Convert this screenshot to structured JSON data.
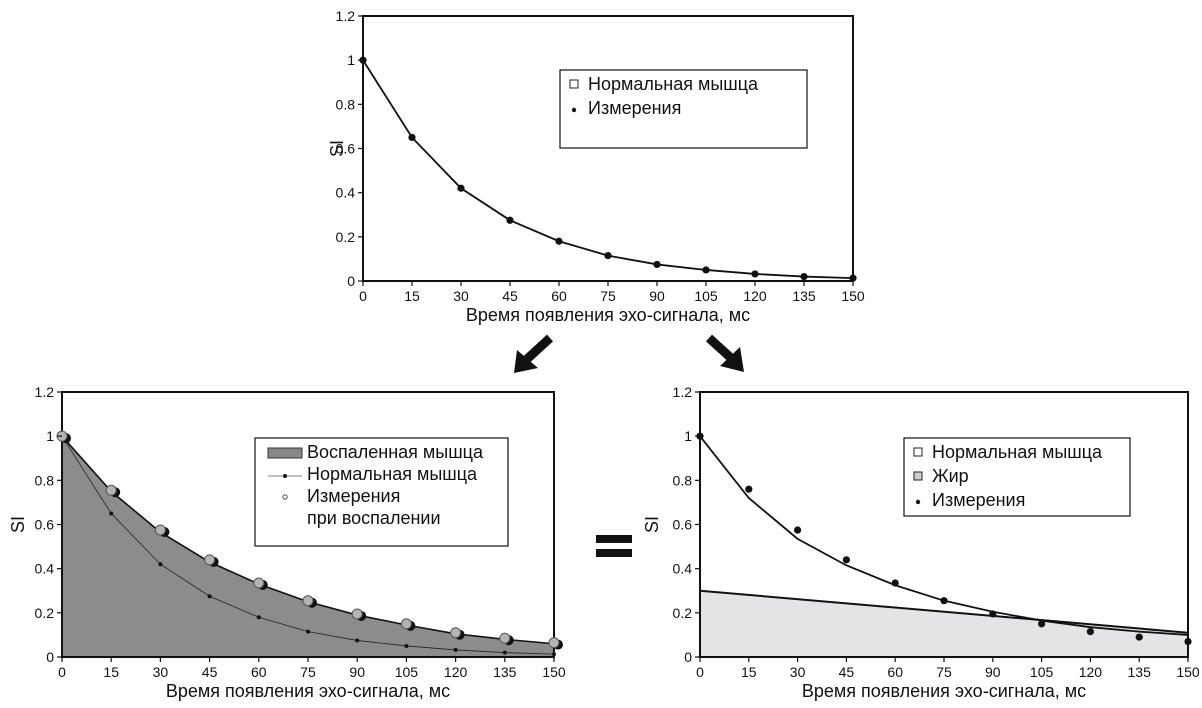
{
  "chart_data": [
    {
      "id": "top",
      "type": "line",
      "xlabel": "Время появления эхо-сигнала, мс",
      "ylabel": "SI",
      "xlim": [
        0,
        150
      ],
      "ylim": [
        0,
        1.2
      ],
      "xticks": [
        0,
        15,
        30,
        45,
        60,
        75,
        90,
        105,
        120,
        135,
        150
      ],
      "yticks": [
        "0",
        "0.2",
        "0.4",
        "0.6",
        "0.8",
        "1",
        "1.2"
      ],
      "grid": false,
      "legend_position": "top-right",
      "legend": [
        "Нормальная мышца",
        "Измерения"
      ],
      "series": [
        {
          "name": "Нормальная мышца",
          "style": "line",
          "x": [
            0,
            15,
            30,
            45,
            60,
            75,
            90,
            105,
            120,
            135,
            150
          ],
          "values": [
            1.0,
            0.65,
            0.42,
            0.275,
            0.18,
            0.115,
            0.075,
            0.05,
            0.032,
            0.02,
            0.013
          ]
        },
        {
          "name": "Измерения",
          "style": "points",
          "x": [
            0,
            15,
            30,
            45,
            60,
            75,
            90,
            105,
            120,
            135,
            150
          ],
          "values": [
            1.0,
            0.65,
            0.42,
            0.275,
            0.18,
            0.115,
            0.075,
            0.05,
            0.032,
            0.02,
            0.013
          ]
        }
      ]
    },
    {
      "id": "left",
      "type": "area",
      "xlabel": "Время появления эхо-сигнала, мс",
      "ylabel": "SI",
      "xlim": [
        0,
        150
      ],
      "ylim": [
        0,
        1.2
      ],
      "xticks": [
        0,
        15,
        30,
        45,
        60,
        75,
        90,
        105,
        120,
        135,
        150
      ],
      "yticks": [
        "0",
        "0.2",
        "0.4",
        "0.6",
        "0.8",
        "1",
        "1.2"
      ],
      "grid": false,
      "legend_position": "top-right",
      "legend": [
        "Воспаленная мышца",
        "Нормальная мышца",
        "Измерения",
        "при воспалении"
      ],
      "series": [
        {
          "name": "Воспаленная мышца",
          "style": "area",
          "x": [
            0,
            15,
            30,
            45,
            60,
            75,
            90,
            105,
            120,
            135,
            150
          ],
          "values": [
            1.0,
            0.75,
            0.565,
            0.43,
            0.33,
            0.25,
            0.19,
            0.145,
            0.105,
            0.08,
            0.06
          ]
        },
        {
          "name": "Нормальная мышца",
          "style": "line-dots",
          "x": [
            0,
            15,
            30,
            45,
            60,
            75,
            90,
            105,
            120,
            135,
            150
          ],
          "values": [
            1.0,
            0.65,
            0.42,
            0.275,
            0.18,
            0.115,
            0.075,
            0.05,
            0.032,
            0.02,
            0.013
          ]
        },
        {
          "name": "Измерения при воспалении",
          "style": "points",
          "x": [
            0,
            15,
            30,
            45,
            60,
            75,
            90,
            105,
            120,
            135,
            150
          ],
          "values": [
            1.0,
            0.755,
            0.575,
            0.44,
            0.335,
            0.255,
            0.195,
            0.15,
            0.11,
            0.085,
            0.065
          ]
        }
      ]
    },
    {
      "id": "right",
      "type": "line",
      "xlabel": "Время появления эхо-сигнала, мс",
      "ylabel": "SI",
      "xlim": [
        0,
        150
      ],
      "ylim": [
        0,
        1.2
      ],
      "xticks": [
        0,
        15,
        30,
        45,
        60,
        75,
        90,
        105,
        120,
        135,
        150
      ],
      "yticks": [
        "0",
        "0.2",
        "0.4",
        "0.6",
        "0.8",
        "1",
        "1.2"
      ],
      "grid": false,
      "legend_position": "top-right",
      "legend": [
        "Нормальная мышца",
        "Жир",
        "Измерения"
      ],
      "series": [
        {
          "name": "Нормальная мышца",
          "style": "line",
          "x": [
            0,
            15,
            30,
            45,
            60,
            75,
            90,
            105,
            120,
            135,
            150
          ],
          "values": [
            1.0,
            0.72,
            0.535,
            0.415,
            0.325,
            0.255,
            0.205,
            0.165,
            0.135,
            0.115,
            0.1
          ]
        },
        {
          "name": "Жир",
          "style": "area",
          "x": [
            0,
            150
          ],
          "values": [
            0.3,
            0.11
          ]
        },
        {
          "name": "Измерения",
          "style": "points",
          "x": [
            0,
            15,
            30,
            45,
            60,
            75,
            90,
            105,
            120,
            135,
            150
          ],
          "values": [
            1.0,
            0.76,
            0.575,
            0.44,
            0.335,
            0.255,
            0.195,
            0.15,
            0.115,
            0.09,
            0.07
          ]
        }
      ]
    }
  ],
  "operator": "="
}
